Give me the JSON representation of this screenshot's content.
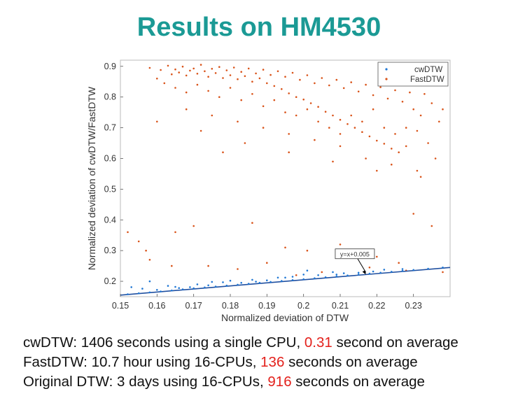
{
  "slide": {
    "title": "Results on HM4530",
    "lines": [
      {
        "pre": "cwDTW: 1406 seconds using a single CPU, ",
        "value": "0.31",
        "post": " second on average"
      },
      {
        "pre": "FastDTW: 10.7 hour using 16-CPUs, ",
        "value": "136",
        "post": " seconds on average"
      },
      {
        "pre": "Original DTW: 3 days using 16-CPUs, ",
        "value": "916",
        "post": " seconds on average"
      }
    ]
  },
  "chart_data": {
    "type": "scatter",
    "xlabel": "Normalized deviation of DTW",
    "ylabel": "Normalized deviation of cwDTW/FastDTW",
    "xlim": [
      0.15,
      0.24
    ],
    "ylim": [
      0.15,
      0.92
    ],
    "xticks": [
      "0.15",
      "0.16",
      "0.17",
      "0.18",
      "0.19",
      "0.2",
      "0.21",
      "0.22",
      "0.23"
    ],
    "yticks": [
      "0.2",
      "0.3",
      "0.4",
      "0.5",
      "0.6",
      "0.7",
      "0.8",
      "0.9"
    ],
    "legend_position": "top-right",
    "grid": false,
    "series": [
      {
        "name": "cwDTW",
        "color": "#1f77d4",
        "description_of_distribution": "points lie just above the line y = x + 0.005",
        "points": [
          [
            0.152,
            0.158
          ],
          [
            0.155,
            0.161
          ],
          [
            0.158,
            0.164
          ],
          [
            0.161,
            0.167
          ],
          [
            0.164,
            0.17
          ],
          [
            0.167,
            0.174
          ],
          [
            0.17,
            0.177
          ],
          [
            0.173,
            0.18
          ],
          [
            0.176,
            0.183
          ],
          [
            0.179,
            0.186
          ],
          [
            0.182,
            0.189
          ],
          [
            0.185,
            0.192
          ],
          [
            0.188,
            0.195
          ],
          [
            0.191,
            0.198
          ],
          [
            0.194,
            0.201
          ],
          [
            0.197,
            0.204
          ],
          [
            0.2,
            0.207
          ],
          [
            0.203,
            0.21
          ],
          [
            0.206,
            0.213
          ],
          [
            0.209,
            0.216
          ],
          [
            0.212,
            0.219
          ],
          [
            0.215,
            0.222
          ],
          [
            0.218,
            0.225
          ],
          [
            0.221,
            0.228
          ],
          [
            0.224,
            0.231
          ],
          [
            0.227,
            0.234
          ],
          [
            0.23,
            0.237
          ],
          [
            0.234,
            0.241
          ],
          [
            0.238,
            0.245
          ],
          [
            0.16,
            0.172
          ],
          [
            0.165,
            0.182
          ],
          [
            0.171,
            0.19
          ],
          [
            0.178,
            0.197
          ],
          [
            0.186,
            0.205
          ],
          [
            0.193,
            0.212
          ],
          [
            0.2,
            0.222
          ],
          [
            0.208,
            0.23
          ],
          [
            0.215,
            0.228
          ],
          [
            0.222,
            0.238
          ],
          [
            0.156,
            0.176
          ],
          [
            0.163,
            0.185
          ],
          [
            0.175,
            0.198
          ],
          [
            0.183,
            0.195
          ],
          [
            0.19,
            0.203
          ],
          [
            0.197,
            0.215
          ],
          [
            0.204,
            0.22
          ],
          [
            0.169,
            0.181
          ],
          [
            0.153,
            0.181
          ],
          [
            0.158,
            0.2
          ],
          [
            0.18,
            0.202
          ],
          [
            0.195,
            0.212
          ],
          [
            0.201,
            0.235
          ],
          [
            0.211,
            0.226
          ],
          [
            0.219,
            0.232
          ],
          [
            0.227,
            0.24
          ],
          [
            0.166,
            0.178
          ],
          [
            0.174,
            0.187
          ],
          [
            0.187,
            0.199
          ],
          [
            0.209,
            0.222
          ]
        ]
      },
      {
        "name": "FastDTW",
        "color": "#d95319",
        "points": [
          [
            0.158,
            0.895
          ],
          [
            0.161,
            0.888
          ],
          [
            0.163,
            0.902
          ],
          [
            0.164,
            0.874
          ],
          [
            0.165,
            0.89
          ],
          [
            0.166,
            0.88
          ],
          [
            0.167,
            0.899
          ],
          [
            0.168,
            0.87
          ],
          [
            0.169,
            0.886
          ],
          [
            0.17,
            0.893
          ],
          [
            0.171,
            0.876
          ],
          [
            0.172,
            0.905
          ],
          [
            0.173,
            0.884
          ],
          [
            0.174,
            0.866
          ],
          [
            0.175,
            0.892
          ],
          [
            0.176,
            0.878
          ],
          [
            0.177,
            0.898
          ],
          [
            0.178,
            0.862
          ],
          [
            0.179,
            0.887
          ],
          [
            0.18,
            0.871
          ],
          [
            0.181,
            0.896
          ],
          [
            0.182,
            0.858
          ],
          [
            0.183,
            0.882
          ],
          [
            0.184,
            0.868
          ],
          [
            0.185,
            0.893
          ],
          [
            0.186,
            0.85
          ],
          [
            0.187,
            0.877
          ],
          [
            0.188,
            0.861
          ],
          [
            0.189,
            0.889
          ],
          [
            0.19,
            0.845
          ],
          [
            0.191,
            0.872
          ],
          [
            0.192,
            0.836
          ],
          [
            0.193,
            0.884
          ],
          [
            0.194,
            0.826
          ],
          [
            0.195,
            0.866
          ],
          [
            0.196,
            0.812
          ],
          [
            0.197,
            0.879
          ],
          [
            0.198,
            0.8
          ],
          [
            0.199,
            0.856
          ],
          [
            0.2,
            0.792
          ],
          [
            0.201,
            0.871
          ],
          [
            0.202,
            0.78
          ],
          [
            0.203,
            0.845
          ],
          [
            0.204,
            0.768
          ],
          [
            0.205,
            0.862
          ],
          [
            0.206,
            0.752
          ],
          [
            0.207,
            0.838
          ],
          [
            0.208,
            0.74
          ],
          [
            0.209,
            0.856
          ],
          [
            0.21,
            0.726
          ],
          [
            0.211,
            0.829
          ],
          [
            0.212,
            0.712
          ],
          [
            0.213,
            0.848
          ],
          [
            0.214,
            0.7
          ],
          [
            0.215,
            0.818
          ],
          [
            0.216,
            0.686
          ],
          [
            0.217,
            0.84
          ],
          [
            0.218,
            0.672
          ],
          [
            0.219,
            0.806
          ],
          [
            0.22,
            0.658
          ],
          [
            0.221,
            0.832
          ],
          [
            0.222,
            0.648
          ],
          [
            0.223,
            0.795
          ],
          [
            0.224,
            0.632
          ],
          [
            0.225,
            0.822
          ],
          [
            0.226,
            0.62
          ],
          [
            0.227,
            0.785
          ],
          [
            0.228,
            0.7
          ],
          [
            0.229,
            0.815
          ],
          [
            0.23,
            0.76
          ],
          [
            0.231,
            0.69
          ],
          [
            0.232,
            0.74
          ],
          [
            0.233,
            0.81
          ],
          [
            0.234,
            0.65
          ],
          [
            0.235,
            0.78
          ],
          [
            0.236,
            0.6
          ],
          [
            0.237,
            0.72
          ],
          [
            0.238,
            0.76
          ],
          [
            0.16,
            0.86
          ],
          [
            0.162,
            0.845
          ],
          [
            0.165,
            0.83
          ],
          [
            0.168,
            0.815
          ],
          [
            0.171,
            0.84
          ],
          [
            0.174,
            0.82
          ],
          [
            0.177,
            0.8
          ],
          [
            0.18,
            0.83
          ],
          [
            0.183,
            0.79
          ],
          [
            0.186,
            0.81
          ],
          [
            0.189,
            0.77
          ],
          [
            0.192,
            0.79
          ],
          [
            0.195,
            0.75
          ],
          [
            0.198,
            0.74
          ],
          [
            0.201,
            0.76
          ],
          [
            0.204,
            0.72
          ],
          [
            0.207,
            0.7
          ],
          [
            0.21,
            0.68
          ],
          [
            0.213,
            0.74
          ],
          [
            0.216,
            0.72
          ],
          [
            0.219,
            0.76
          ],
          [
            0.222,
            0.7
          ],
          [
            0.225,
            0.68
          ],
          [
            0.228,
            0.64
          ],
          [
            0.168,
            0.76
          ],
          [
            0.175,
            0.74
          ],
          [
            0.182,
            0.72
          ],
          [
            0.189,
            0.7
          ],
          [
            0.196,
            0.68
          ],
          [
            0.203,
            0.66
          ],
          [
            0.21,
            0.64
          ],
          [
            0.217,
            0.6
          ],
          [
            0.224,
            0.58
          ],
          [
            0.231,
            0.56
          ],
          [
            0.16,
            0.72
          ],
          [
            0.172,
            0.69
          ],
          [
            0.184,
            0.65
          ],
          [
            0.196,
            0.62
          ],
          [
            0.208,
            0.59
          ],
          [
            0.22,
            0.56
          ],
          [
            0.232,
            0.54
          ],
          [
            0.178,
            0.62
          ],
          [
            0.152,
            0.36
          ],
          [
            0.155,
            0.33
          ],
          [
            0.157,
            0.3
          ],
          [
            0.165,
            0.36
          ],
          [
            0.17,
            0.38
          ],
          [
            0.186,
            0.39
          ],
          [
            0.195,
            0.31
          ],
          [
            0.201,
            0.3
          ],
          [
            0.21,
            0.32
          ],
          [
            0.214,
            0.29
          ],
          [
            0.22,
            0.28
          ],
          [
            0.226,
            0.26
          ],
          [
            0.23,
            0.42
          ],
          [
            0.235,
            0.38
          ],
          [
            0.238,
            0.23
          ],
          [
            0.174,
            0.25
          ],
          [
            0.182,
            0.24
          ],
          [
            0.158,
            0.27
          ],
          [
            0.164,
            0.25
          ],
          [
            0.19,
            0.26
          ],
          [
            0.205,
            0.23
          ],
          [
            0.218,
            0.245
          ],
          [
            0.228,
            0.235
          ],
          [
            0.198,
            0.22
          ]
        ]
      }
    ],
    "annotation": {
      "text": "y=x+0.005",
      "arrow_to": [
        0.217,
        0.222
      ],
      "box_at": [
        0.214,
        0.285
      ]
    },
    "reference_line": {
      "slope": 1,
      "intercept": 0.005,
      "color": "#1f4fa0"
    }
  }
}
